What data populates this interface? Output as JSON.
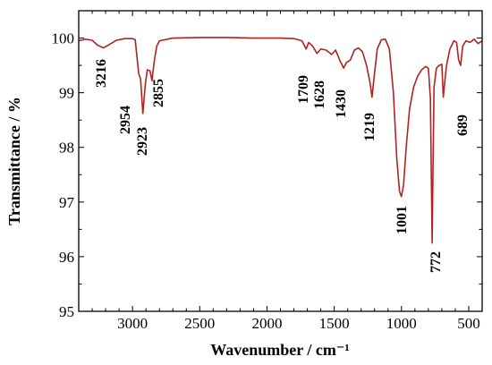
{
  "chart_data": {
    "type": "line",
    "title": "",
    "xlabel": "Wavenumber / cm⁻¹",
    "ylabel": "Transmittance / %",
    "xlim": [
      3400,
      400
    ],
    "ylim": [
      95,
      100.5
    ],
    "x_reversed": true,
    "grid": false,
    "legend": "none",
    "x_ticks": [
      3000,
      2500,
      2000,
      1500,
      1000,
      500
    ],
    "y_ticks": [
      95,
      96,
      97,
      98,
      99,
      100
    ],
    "line_color": "#b22222",
    "series": [
      {
        "points": [
          [
            3400,
            99.95
          ],
          [
            3350,
            99.98
          ],
          [
            3300,
            99.96
          ],
          [
            3260,
            99.87
          ],
          [
            3216,
            99.82
          ],
          [
            3180,
            99.87
          ],
          [
            3120,
            99.96
          ],
          [
            3060,
            99.99
          ],
          [
            3000,
            99.99
          ],
          [
            2980,
            99.97
          ],
          [
            2954,
            99.35
          ],
          [
            2940,
            99.25
          ],
          [
            2923,
            98.62
          ],
          [
            2905,
            99.15
          ],
          [
            2890,
            99.42
          ],
          [
            2870,
            99.4
          ],
          [
            2855,
            99.22
          ],
          [
            2840,
            99.55
          ],
          [
            2820,
            99.85
          ],
          [
            2800,
            99.95
          ],
          [
            2700,
            100.0
          ],
          [
            2500,
            100.01
          ],
          [
            2300,
            100.01
          ],
          [
            2100,
            100.0
          ],
          [
            1900,
            100.0
          ],
          [
            1800,
            99.99
          ],
          [
            1740,
            99.95
          ],
          [
            1709,
            99.8
          ],
          [
            1690,
            99.92
          ],
          [
            1660,
            99.85
          ],
          [
            1628,
            99.72
          ],
          [
            1600,
            99.8
          ],
          [
            1560,
            99.78
          ],
          [
            1520,
            99.7
          ],
          [
            1490,
            99.78
          ],
          [
            1460,
            99.6
          ],
          [
            1430,
            99.45
          ],
          [
            1410,
            99.55
          ],
          [
            1380,
            99.6
          ],
          [
            1350,
            99.78
          ],
          [
            1320,
            99.82
          ],
          [
            1290,
            99.75
          ],
          [
            1260,
            99.5
          ],
          [
            1235,
            99.2
          ],
          [
            1219,
            98.92
          ],
          [
            1205,
            99.25
          ],
          [
            1180,
            99.8
          ],
          [
            1150,
            99.97
          ],
          [
            1120,
            99.98
          ],
          [
            1090,
            99.8
          ],
          [
            1060,
            99.0
          ],
          [
            1035,
            97.8
          ],
          [
            1015,
            97.2
          ],
          [
            1001,
            97.1
          ],
          [
            985,
            97.3
          ],
          [
            965,
            98.0
          ],
          [
            940,
            98.7
          ],
          [
            910,
            99.1
          ],
          [
            880,
            99.3
          ],
          [
            850,
            99.42
          ],
          [
            820,
            99.48
          ],
          [
            800,
            99.45
          ],
          [
            785,
            98.9
          ],
          [
            778,
            97.5
          ],
          [
            772,
            96.25
          ],
          [
            766,
            97.5
          ],
          [
            758,
            99.1
          ],
          [
            740,
            99.45
          ],
          [
            720,
            99.5
          ],
          [
            700,
            99.52
          ],
          [
            689,
            98.92
          ],
          [
            678,
            99.2
          ],
          [
            665,
            99.5
          ],
          [
            640,
            99.8
          ],
          [
            610,
            99.95
          ],
          [
            590,
            99.92
          ],
          [
            575,
            99.6
          ],
          [
            560,
            99.5
          ],
          [
            545,
            99.85
          ],
          [
            520,
            99.95
          ],
          [
            490,
            99.92
          ],
          [
            460,
            99.98
          ],
          [
            430,
            99.9
          ],
          [
            400,
            99.95
          ]
        ]
      }
    ],
    "annotations": [
      {
        "text": "3216",
        "x": 3216
      },
      {
        "text": "2954",
        "x": 2954
      },
      {
        "text": "2923",
        "x": 2923
      },
      {
        "text": "2855",
        "x": 2855
      },
      {
        "text": "1709",
        "x": 1709
      },
      {
        "text": "1628",
        "x": 1628
      },
      {
        "text": "1430",
        "x": 1430
      },
      {
        "text": "1219",
        "x": 1219
      },
      {
        "text": "1001",
        "x": 1001
      },
      {
        "text": "772",
        "x": 772
      },
      {
        "text": "689",
        "x": 689
      }
    ]
  }
}
